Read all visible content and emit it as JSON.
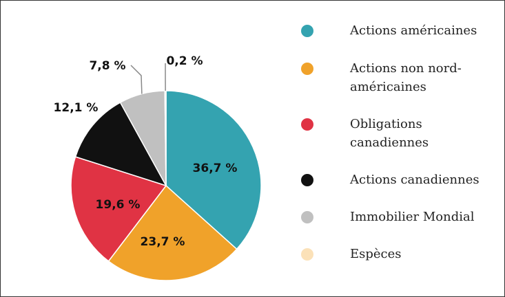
{
  "chart_data": {
    "type": "pie",
    "categories": [
      "Actions américaines",
      "Actions non nord-américaines",
      "Obligations canadiennes",
      "Actions canadiennes",
      "Immobilier Mondial",
      "Espèces"
    ],
    "values": [
      36.7,
      23.7,
      19.6,
      12.1,
      7.8,
      0.2
    ],
    "value_labels": [
      "36,7 %",
      "23,7 %",
      "19,6 %",
      "12,1 %",
      "7,8 %",
      "0,2 %"
    ],
    "colors": [
      "#34a3b0",
      "#f0a22a",
      "#e03344",
      "#111111",
      "#c0c0c0",
      "#fbe1b8"
    ],
    "legend": "right"
  }
}
